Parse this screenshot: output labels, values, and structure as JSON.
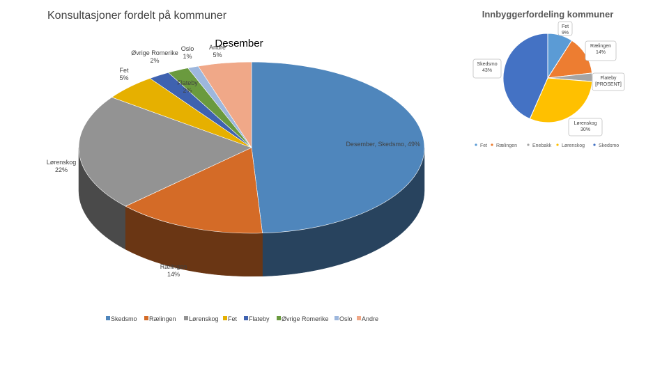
{
  "slide": {
    "title": "Konsultasjoner fordelt på kommuner"
  },
  "chart_data": [
    {
      "type": "pie",
      "style": "3d",
      "title": "Desember",
      "categories": [
        "Skedsmo",
        "Rælingen",
        "Lørenskog",
        "Fet",
        "Flateby",
        "Øvrige Romerike",
        "Oslo",
        "Andre"
      ],
      "values": [
        49,
        14,
        22,
        5,
        2,
        2,
        1,
        5
      ],
      "labels": [
        "Desember, Skedsmo, 49%",
        "Rælingen\n14%",
        "Lørenskog\n22%",
        "Fet\n5%",
        "Flateby\n2%",
        "Øvrige Romerike\n2%",
        "Oslo\n1%",
        "Andre\n5%"
      ],
      "colors": [
        "#4f86bc",
        "#d46b27",
        "#939393",
        "#e6b000",
        "#3f62b0",
        "#6a9a3e",
        "#9db7dd",
        "#f0a888"
      ],
      "legend": {
        "position": "bottom",
        "entries": [
          "Skedsmo",
          "Rælingen",
          "Lørenskog",
          "Fet",
          "Flateby",
          "Øvrige Romerike",
          "Oslo",
          "Andre"
        ]
      }
    },
    {
      "type": "pie",
      "title": "Innbyggerfordeling kommuner",
      "categories": [
        "Fet",
        "Rælingen",
        "Enebakk",
        "Lørenskog",
        "Skedsmo"
      ],
      "values": [
        9,
        14,
        3,
        30,
        43
      ],
      "labels": [
        "Fet\n9%",
        "Rælingen\n14%",
        "Flateby\n[PROSENT]",
        "Lørenskog\n30%",
        "Skedsmo\n43%"
      ],
      "colors": [
        "#5b9bd5",
        "#ed7d31",
        "#a5a5a5",
        "#ffc000",
        "#4472c4"
      ],
      "legend": {
        "position": "bottom",
        "entries": [
          "Fet",
          "Rælingen",
          "Enebakk",
          "Lørenskog",
          "Skedsmo"
        ]
      }
    }
  ]
}
